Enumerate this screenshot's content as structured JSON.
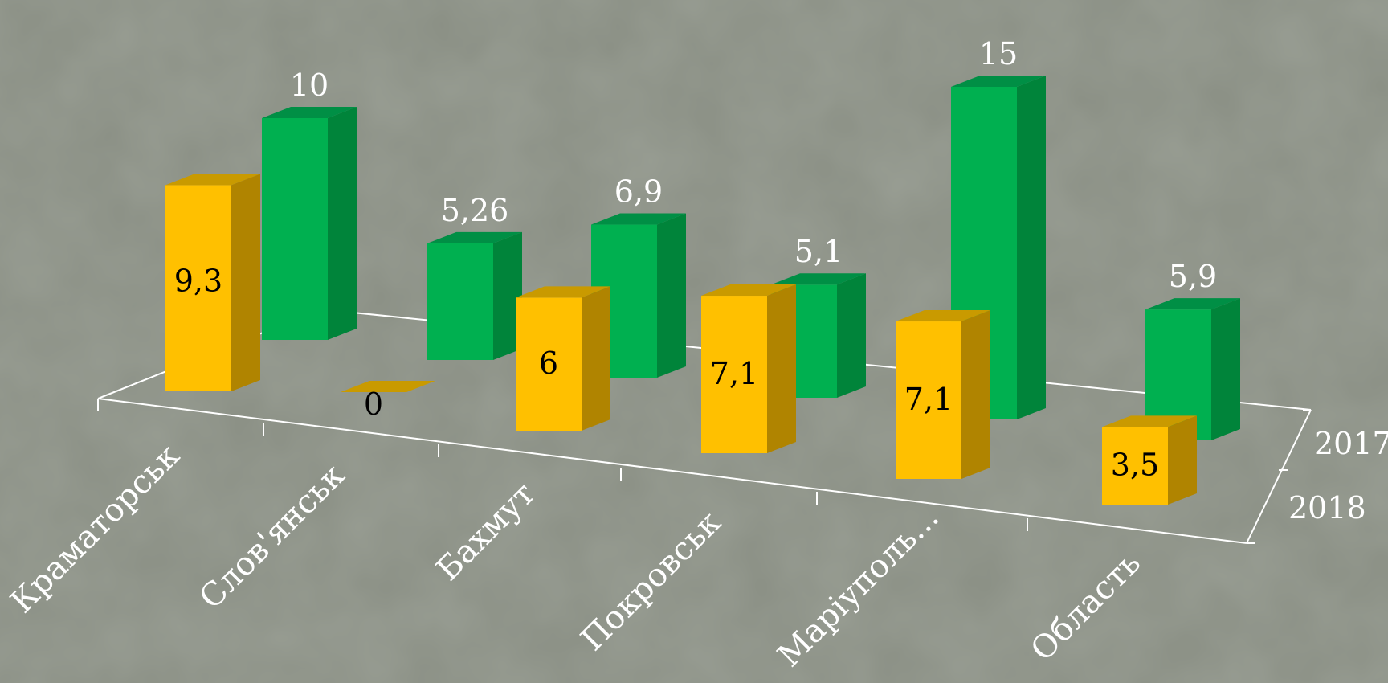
{
  "chart_data": {
    "type": "bar",
    "title": "",
    "categories": [
      "Краматорськ",
      "Слов'янськ",
      "Бахмут",
      "Покровськ",
      "Маріуполь...",
      "Область"
    ],
    "series": [
      {
        "name": "2017",
        "values": [
          10,
          5.26,
          6.9,
          5.1,
          15,
          5.9
        ],
        "labels": [
          "10",
          "5,26",
          "6,9",
          "5,1",
          "15",
          "5,9"
        ]
      },
      {
        "name": "2018",
        "values": [
          9.3,
          0,
          6,
          7.1,
          7.1,
          3.5
        ],
        "labels": [
          "9,3",
          "0",
          "6",
          "7,1",
          "7,1",
          "3,5"
        ]
      }
    ],
    "depth_axis": [
      "2017",
      "2018"
    ],
    "ylim": [
      0,
      15
    ],
    "grid": false,
    "colors": {
      "series_2017": "#00b050",
      "series_2017_side": "#00843a",
      "series_2017_top": "#008f45",
      "series_2018": "#ffc000",
      "series_2018_side": "#b08400",
      "series_2018_top": "#c99a00",
      "axis": "#ffffff",
      "background": "#8a8f84"
    }
  }
}
